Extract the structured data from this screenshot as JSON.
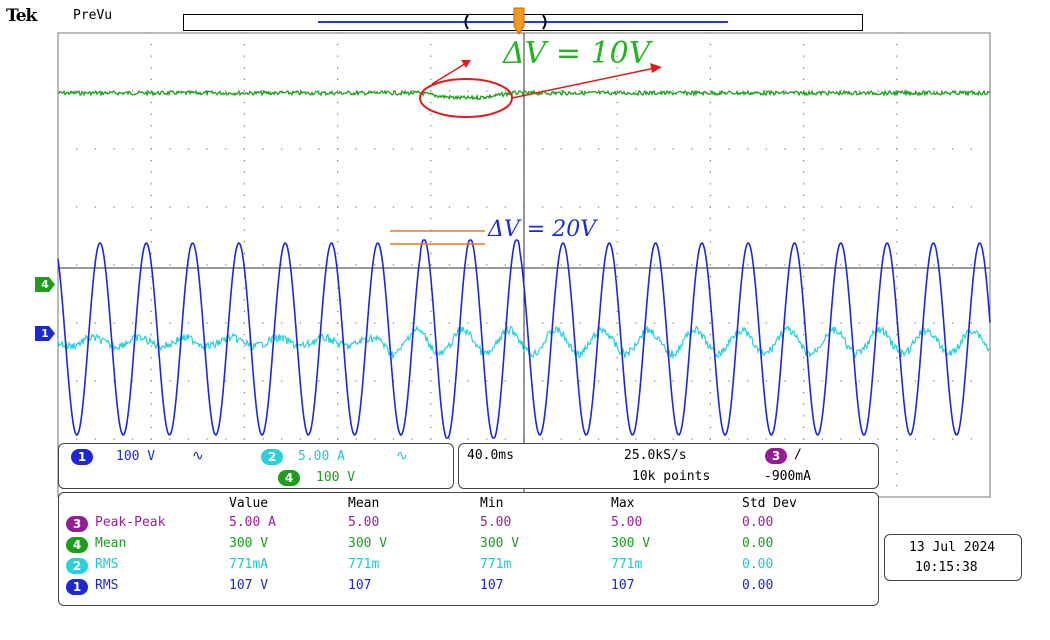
{
  "header": {
    "brand": "Tek",
    "status": "PreVu"
  },
  "annotations": {
    "delta_v_top": "ΔV = 10V",
    "delta_v_mid": "ΔV = 20V",
    "top_color": "#21b521",
    "mid_color": "#1b2ad8",
    "ellipse_color": "#e21b1b",
    "line_color": "#e07a2a"
  },
  "markers": {
    "ch4": "4",
    "ch1": "1"
  },
  "channels_panel": {
    "ch1": {
      "num": "1",
      "scale": "100 V",
      "coupling": "∿"
    },
    "ch2": {
      "num": "2",
      "scale": "5.00 A",
      "coupling": "∿"
    },
    "ch4": {
      "num": "4",
      "scale": "100 V"
    }
  },
  "timebase_panel": {
    "time_div": "40.0ms",
    "sample_rate": "25.0kS/s",
    "record_length": "10k points",
    "trigger_source": "3",
    "trigger_slope": "∕",
    "trigger_level": "-900mA"
  },
  "measurements": {
    "headers": [
      "Value",
      "Mean",
      "Min",
      "Max",
      "Std Dev"
    ],
    "rows": [
      {
        "ch": "3",
        "type": "Peak-Peak",
        "value": "5.00 A",
        "mean": "5.00",
        "min": "5.00",
        "max": "5.00",
        "std": "0.00"
      },
      {
        "ch": "4",
        "type": "Mean",
        "value": "300 V",
        "mean": "300 V",
        "min": "300 V",
        "max": "300 V",
        "std": "0.00"
      },
      {
        "ch": "2",
        "type": "RMS",
        "value": "771mA",
        "mean": "771m",
        "min": "771m",
        "max": "771m",
        "std": "0.00"
      },
      {
        "ch": "1",
        "type": "RMS",
        "value": "107 V",
        "mean": "107",
        "min": "107",
        "max": "107",
        "std": "0.00"
      }
    ]
  },
  "datetime": {
    "date": "13 Jul  2024",
    "time": "10:15:38"
  },
  "colors": {
    "ch1": "#1d27d6",
    "ch2": "#2ad0da",
    "ch3": "#931e93",
    "ch4": "#1c9e1c"
  }
}
